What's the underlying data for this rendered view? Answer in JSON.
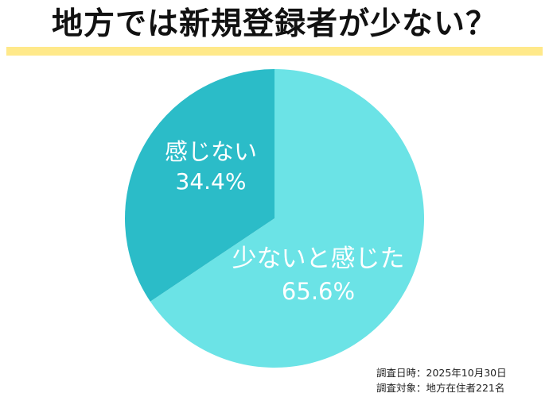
{
  "title": "地方では新規登録者が少ない？",
  "colors": {
    "title_bar": "#FFE98A",
    "slice_major": "#6BE3E6",
    "slice_minor": "#2BBCC8",
    "label_text": "#FFFFFF"
  },
  "slices": [
    {
      "label": "少ないと感じた",
      "value_text": "65.6%"
    },
    {
      "label": "感じない",
      "value_text": "34.4%"
    }
  ],
  "footnote": {
    "date_line": "調査日時：2025年10月30日",
    "target_line": "調査対象：地方在住者221名"
  },
  "chart_data": {
    "type": "pie",
    "title": "地方では新規登録者が少ない？",
    "categories": [
      "少ないと感じた",
      "感じない"
    ],
    "values": [
      65.6,
      34.4
    ],
    "unit": "%",
    "colors": [
      "#6BE3E6",
      "#2BBCC8"
    ],
    "start_angle": "12 o'clock",
    "direction": "clockwise for 少ないと感じた, remainder 感じない",
    "legend": "none (labels drawn inside slices)",
    "notes": [
      "調査日時：2025年10月30日",
      "調査対象：地方在住者221名"
    ]
  }
}
